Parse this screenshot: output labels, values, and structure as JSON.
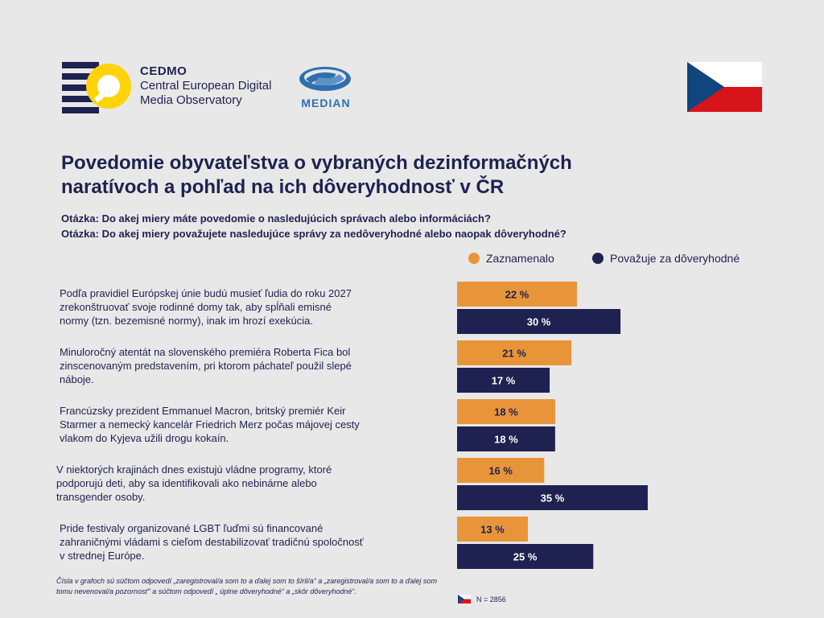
{
  "header": {
    "cedmo_name": "CEDMO",
    "cedmo_sub1": "Central European Digital",
    "cedmo_sub2": "Media Observatory",
    "median_name": "MEDIAN"
  },
  "title_line1": "Povedomie obyvateľstva o vybraných dezinformačných",
  "title_line2": "naratívoch a pohľad na ich dôveryhodnosť v ČR",
  "question1": "Otázka: Do akej miery máte povedomie o nasledujúcich správach alebo informáciách?",
  "question2": "Otázka: Do akej miery považujete nasledujúce správy za nedôveryhodné alebo naopak dôveryhodné?",
  "colors": {
    "orange": "#e8953a",
    "navy": "#1f2150",
    "flag_red": "#d7141a",
    "flag_blue": "#11457e"
  },
  "chart_data": {
    "type": "bar",
    "orientation": "horizontal",
    "legend_position": "top-right",
    "categories": [
      [
        "Podľa pravidiel Európskej únie budú musieť ľudia do roku 2027",
        "zrekonštruovať svoje rodinné domy tak, aby spĺňali emisné",
        "normy (tzn. bezemisné normy), inak im hrozí exekúcia."
      ],
      [
        "Minuloročný atentát na slovenského premiéra Roberta Fica bol",
        "zinscenovaným predstavením, pri ktorom páchateľ použil slepé",
        "náboje."
      ],
      [
        "Francúzsky prezident Emmanuel Macron, britský premiér Keir",
        "Starmer a nemecký kancelár Friedrich Merz počas májovej cesty",
        "vlakom do Kyjeva užili drogu kokaín."
      ],
      [
        "V niektorých krajinách dnes existujú vládne programy, ktoré",
        "podporujú deti, aby sa identifikovali ako nebinárne alebo",
        "transgender osoby."
      ],
      [
        "Pride festivaly organizované LGBT ľuďmi sú financované",
        "zahraničnými vládami s cieľom destabilizovať tradičnú spoločnosť",
        "v strednej Európe."
      ]
    ],
    "series": [
      {
        "name": "Zaznamenalo",
        "color": "#e8953a",
        "values": [
          22,
          21,
          18,
          16,
          13
        ],
        "labels": [
          "22 %",
          "21 %",
          "18 %",
          "16 %",
          "13 %"
        ]
      },
      {
        "name": "Považuje za dôveryhodné",
        "color": "#1f2150",
        "values": [
          30,
          17,
          18,
          35,
          25
        ],
        "labels": [
          "30 %",
          "17 %",
          "18 %",
          "35 %",
          "25 %"
        ]
      }
    ],
    "xlim": [
      0,
      100
    ],
    "grid": false
  },
  "footnote": "Čísla v grafoch sú súčtom odpovedí „zaregistroval/a som to a ďalej som to šíril/a“ a „zaregistroval/a som to a ďalej som tomu nevenoval/a pozornosť“ a súčtom odpovedí „ úplne dôveryhodné“ a „skôr dôveryhodné“.",
  "sample": "N = 2856"
}
